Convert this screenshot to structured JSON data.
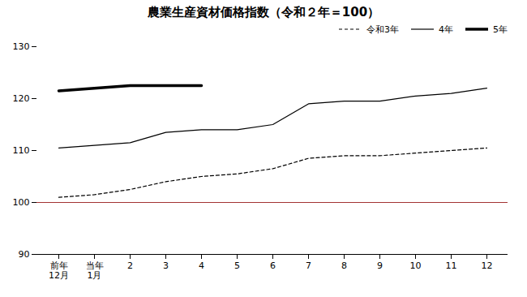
{
  "chart_data": {
    "type": "line",
    "title": "農業生産資材価格指数（令和２年＝100）",
    "categories": [
      "前年\n12月",
      "当年\n1月",
      "2",
      "3",
      "4",
      "5",
      "6",
      "7",
      "8",
      "9",
      "10",
      "11",
      "12"
    ],
    "series": [
      {
        "name": "令和3年",
        "color": "#000000",
        "line_style": "dashed",
        "values": [
          101.0,
          101.5,
          102.5,
          104.0,
          105.0,
          105.5,
          106.5,
          108.5,
          109.0,
          109.0,
          109.5,
          110.0,
          110.5
        ]
      },
      {
        "name": "4年",
        "color": "#000000",
        "line_style": "solid",
        "values": [
          110.5,
          111.0,
          111.5,
          113.5,
          114.0,
          114.0,
          115.0,
          119.0,
          119.5,
          119.5,
          120.5,
          121.0,
          122.0
        ]
      },
      {
        "name": "5年",
        "color": "#000000",
        "line_style": "thick",
        "values": [
          121.5,
          122.0,
          122.5,
          122.5,
          122.5,
          null,
          null,
          null,
          null,
          null,
          null,
          null,
          null
        ]
      }
    ],
    "reference_lines": [
      {
        "y": 100,
        "color": "#8B0000"
      }
    ],
    "ylim": [
      90,
      130
    ],
    "yticks": [
      90,
      100,
      110,
      120,
      130
    ],
    "grid": false,
    "legend": "upper right"
  }
}
